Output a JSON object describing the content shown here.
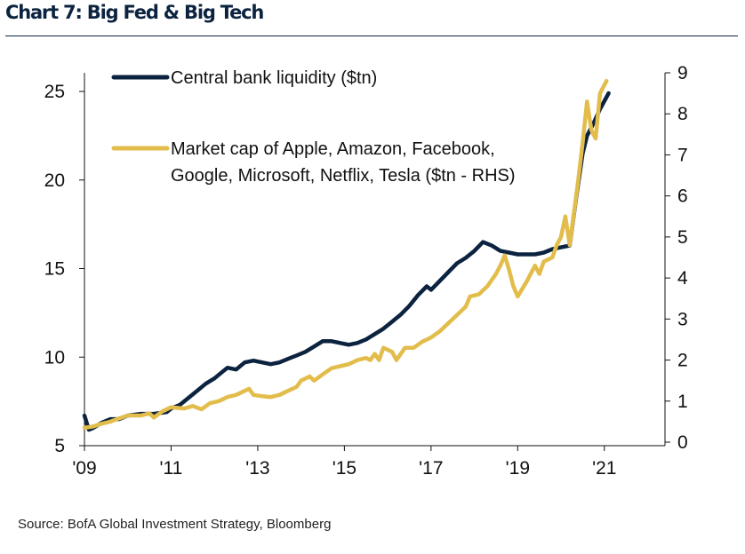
{
  "title": "Chart 7: Big Fed & Big Tech",
  "source": "Source:  BofA Global Investment Strategy, Bloomberg",
  "colors": {
    "title": "#0c2340",
    "liquidity": "#0c2340",
    "marketcap": "#e3bd4b",
    "axis": "#111111"
  },
  "chart_data": {
    "type": "line",
    "grid": false,
    "legend_position": "top-left",
    "x_axis": {
      "range": [
        2009.0,
        2022.4
      ],
      "tick_values": [
        2009,
        2011,
        2013,
        2015,
        2017,
        2019,
        2021
      ],
      "tick_labels": [
        "'09",
        "'11",
        "'13",
        "'15",
        "'17",
        "'19",
        "'21"
      ]
    },
    "y_left": {
      "range": [
        5,
        27
      ],
      "ticks": [
        5,
        10,
        15,
        20,
        25
      ]
    },
    "y_right": {
      "range": [
        0,
        9
      ],
      "ticks": [
        0,
        1,
        2,
        3,
        4,
        5,
        6,
        7,
        8,
        9
      ]
    },
    "series": [
      {
        "name": "Central bank liquidity ($tn)",
        "axis": "left",
        "color": "#0c2340",
        "points": [
          [
            2009.0,
            6.7
          ],
          [
            2009.1,
            5.9
          ],
          [
            2009.2,
            6.0
          ],
          [
            2009.4,
            6.3
          ],
          [
            2009.6,
            6.5
          ],
          [
            2009.8,
            6.5
          ],
          [
            2010.0,
            6.7
          ],
          [
            2010.3,
            6.8
          ],
          [
            2010.6,
            6.8
          ],
          [
            2010.9,
            6.9
          ],
          [
            2011.0,
            7.1
          ],
          [
            2011.2,
            7.3
          ],
          [
            2011.4,
            7.7
          ],
          [
            2011.6,
            8.1
          ],
          [
            2011.8,
            8.5
          ],
          [
            2012.0,
            8.8
          ],
          [
            2012.2,
            9.2
          ],
          [
            2012.3,
            9.4
          ],
          [
            2012.5,
            9.3
          ],
          [
            2012.7,
            9.7
          ],
          [
            2012.9,
            9.8
          ],
          [
            2013.1,
            9.7
          ],
          [
            2013.3,
            9.6
          ],
          [
            2013.5,
            9.7
          ],
          [
            2013.7,
            9.9
          ],
          [
            2013.9,
            10.1
          ],
          [
            2014.1,
            10.3
          ],
          [
            2014.3,
            10.6
          ],
          [
            2014.5,
            10.9
          ],
          [
            2014.7,
            10.9
          ],
          [
            2014.9,
            10.8
          ],
          [
            2015.1,
            10.7
          ],
          [
            2015.3,
            10.8
          ],
          [
            2015.5,
            11.0
          ],
          [
            2015.7,
            11.3
          ],
          [
            2015.9,
            11.6
          ],
          [
            2016.1,
            12.0
          ],
          [
            2016.3,
            12.4
          ],
          [
            2016.5,
            12.9
          ],
          [
            2016.7,
            13.5
          ],
          [
            2016.9,
            14.0
          ],
          [
            2017.0,
            13.8
          ],
          [
            2017.2,
            14.3
          ],
          [
            2017.4,
            14.8
          ],
          [
            2017.6,
            15.3
          ],
          [
            2017.8,
            15.6
          ],
          [
            2018.0,
            16.0
          ],
          [
            2018.2,
            16.5
          ],
          [
            2018.4,
            16.3
          ],
          [
            2018.6,
            16.0
          ],
          [
            2018.8,
            15.9
          ],
          [
            2019.0,
            15.8
          ],
          [
            2019.2,
            15.8
          ],
          [
            2019.4,
            15.8
          ],
          [
            2019.6,
            15.9
          ],
          [
            2019.8,
            16.1
          ],
          [
            2020.0,
            16.2
          ],
          [
            2020.2,
            16.3
          ],
          [
            2020.35,
            19.0
          ],
          [
            2020.5,
            21.5
          ],
          [
            2020.6,
            22.5
          ],
          [
            2020.75,
            23.2
          ],
          [
            2020.9,
            24.0
          ],
          [
            2021.1,
            24.9
          ]
        ]
      },
      {
        "name": "Market cap of Apple, Amazon, Facebook, Google, Microsoft, Netflix, Tesla ($tn - RHS)",
        "name_lines": [
          "Market cap of Apple, Amazon, Facebook,",
          "Google, Microsoft, Netflix, Tesla ($tn - RHS)"
        ],
        "axis": "right",
        "color": "#e3bd4b",
        "points": [
          [
            2009.0,
            0.35
          ],
          [
            2009.2,
            0.38
          ],
          [
            2009.4,
            0.45
          ],
          [
            2009.6,
            0.5
          ],
          [
            2009.8,
            0.58
          ],
          [
            2010.0,
            0.65
          ],
          [
            2010.3,
            0.65
          ],
          [
            2010.5,
            0.7
          ],
          [
            2010.6,
            0.6
          ],
          [
            2010.8,
            0.75
          ],
          [
            2011.0,
            0.85
          ],
          [
            2011.3,
            0.82
          ],
          [
            2011.5,
            0.88
          ],
          [
            2011.7,
            0.8
          ],
          [
            2011.9,
            0.95
          ],
          [
            2012.1,
            1.0
          ],
          [
            2012.3,
            1.1
          ],
          [
            2012.5,
            1.15
          ],
          [
            2012.7,
            1.25
          ],
          [
            2012.8,
            1.3
          ],
          [
            2012.9,
            1.15
          ],
          [
            2013.1,
            1.12
          ],
          [
            2013.3,
            1.1
          ],
          [
            2013.5,
            1.15
          ],
          [
            2013.7,
            1.25
          ],
          [
            2013.9,
            1.35
          ],
          [
            2014.0,
            1.5
          ],
          [
            2014.2,
            1.6
          ],
          [
            2014.3,
            1.5
          ],
          [
            2014.5,
            1.65
          ],
          [
            2014.7,
            1.8
          ],
          [
            2014.9,
            1.85
          ],
          [
            2015.1,
            1.9
          ],
          [
            2015.3,
            2.0
          ],
          [
            2015.5,
            2.05
          ],
          [
            2015.6,
            2.0
          ],
          [
            2015.7,
            2.15
          ],
          [
            2015.8,
            2.0
          ],
          [
            2015.9,
            2.3
          ],
          [
            2016.1,
            2.2
          ],
          [
            2016.2,
            2.0
          ],
          [
            2016.4,
            2.3
          ],
          [
            2016.6,
            2.3
          ],
          [
            2016.8,
            2.45
          ],
          [
            2017.0,
            2.55
          ],
          [
            2017.2,
            2.7
          ],
          [
            2017.4,
            2.9
          ],
          [
            2017.6,
            3.1
          ],
          [
            2017.8,
            3.3
          ],
          [
            2017.9,
            3.55
          ],
          [
            2018.1,
            3.6
          ],
          [
            2018.3,
            3.8
          ],
          [
            2018.5,
            4.1
          ],
          [
            2018.6,
            4.3
          ],
          [
            2018.7,
            4.55
          ],
          [
            2018.8,
            4.2
          ],
          [
            2018.9,
            3.8
          ],
          [
            2019.0,
            3.55
          ],
          [
            2019.2,
            3.9
          ],
          [
            2019.4,
            4.3
          ],
          [
            2019.5,
            4.1
          ],
          [
            2019.6,
            4.4
          ],
          [
            2019.8,
            4.5
          ],
          [
            2019.9,
            4.8
          ],
          [
            2020.0,
            5.0
          ],
          [
            2020.1,
            5.5
          ],
          [
            2020.2,
            4.8
          ],
          [
            2020.3,
            5.6
          ],
          [
            2020.4,
            6.4
          ],
          [
            2020.5,
            7.3
          ],
          [
            2020.6,
            8.3
          ],
          [
            2020.7,
            7.6
          ],
          [
            2020.8,
            7.4
          ],
          [
            2020.9,
            8.5
          ],
          [
            2021.05,
            8.8
          ]
        ]
      }
    ]
  }
}
